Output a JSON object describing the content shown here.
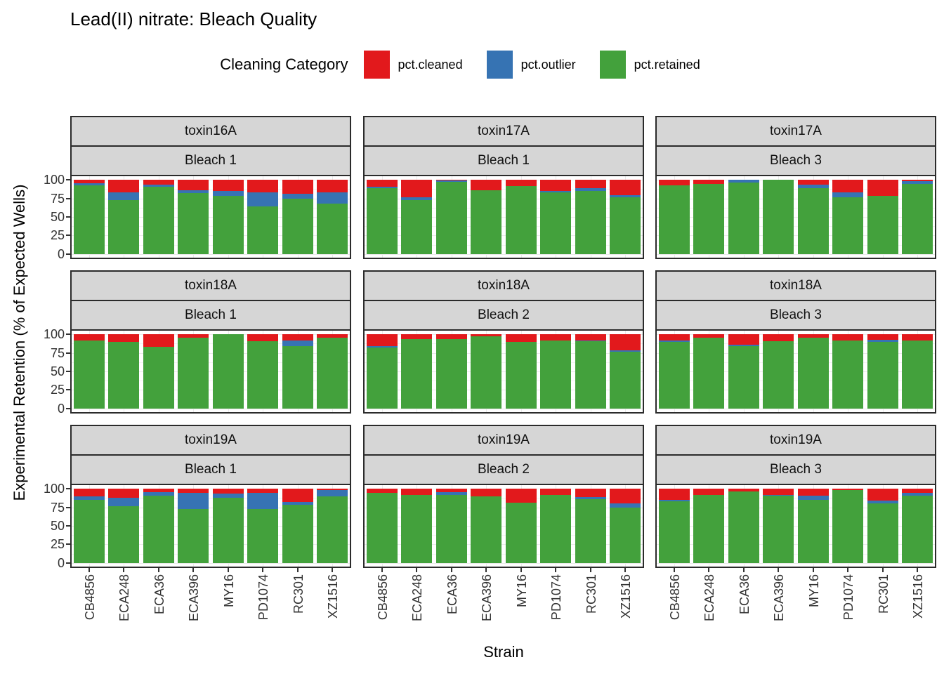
{
  "title": "Lead(II) nitrate: Bleach Quality",
  "legend": {
    "title": "Cleaning Category",
    "items": [
      {
        "label": "pct.cleaned",
        "color": "#e2191c"
      },
      {
        "label": "pct.outlier",
        "color": "#3673b3"
      },
      {
        "label": "pct.retained",
        "color": "#43a13c"
      }
    ]
  },
  "axes": {
    "y_title": "Experimental Retention (% of Expected Wells)",
    "x_title": "Strain",
    "y_ticks": [
      100,
      75,
      50,
      25,
      0
    ]
  },
  "chart_data": {
    "type": "bar",
    "stacked": true,
    "stack_order_bottom_to_top": [
      "pct.retained",
      "pct.outlier",
      "pct.cleaned"
    ],
    "colors": {
      "pct.cleaned": "#e2191c",
      "pct.outlier": "#3673b3",
      "pct.retained": "#43a13c"
    },
    "categories": [
      "CB4856",
      "ECA248",
      "ECA36",
      "ECA396",
      "MY16",
      "PD1074",
      "RC301",
      "XZ1516"
    ],
    "ylim": [
      0,
      100
    ],
    "grid": true,
    "facet_layout": {
      "rows": 3,
      "cols": 3,
      "strip_lines": [
        "toxin",
        "bleach"
      ]
    },
    "panels": [
      {
        "row": 1,
        "col": 1,
        "toxin": "toxin16A",
        "bleach": "Bleach 1",
        "retained": [
          92.5,
          73,
          90.5,
          82.5,
          78,
          64,
          75,
          68
        ],
        "outlier": [
          3,
          10.5,
          3,
          3.5,
          7.5,
          19,
          6,
          15.5
        ],
        "cleaned": [
          4.5,
          16.5,
          6.5,
          14,
          14.5,
          17,
          19,
          16.5
        ]
      },
      {
        "row": 1,
        "col": 2,
        "toxin": "toxin17A",
        "bleach": "Bleach 1",
        "retained": [
          88.5,
          72.5,
          97,
          86,
          92,
          83,
          85.5,
          77
        ],
        "outlier": [
          2.5,
          4,
          2,
          0,
          0,
          2.5,
          3,
          2.5
        ],
        "cleaned": [
          9,
          23.5,
          1,
          14,
          8,
          14.5,
          11.5,
          20.5
        ]
      },
      {
        "row": 1,
        "col": 3,
        "toxin": "toxin17A",
        "bleach": "Bleach 3",
        "retained": [
          93,
          95,
          96.5,
          100,
          89,
          77,
          78,
          95
        ],
        "outlier": [
          0,
          0,
          3.5,
          0,
          5,
          6,
          0,
          3.5
        ],
        "cleaned": [
          7,
          5,
          0,
          0,
          6,
          17,
          22,
          1.5
        ]
      },
      {
        "row": 2,
        "col": 1,
        "toxin": "toxin18A",
        "bleach": "Bleach 1",
        "retained": [
          92,
          89.5,
          83.5,
          96,
          100,
          90.5,
          84,
          96
        ],
        "outlier": [
          0,
          0,
          0,
          0,
          0,
          0,
          8,
          0
        ],
        "cleaned": [
          8,
          10.5,
          16.5,
          4,
          0,
          9.5,
          8,
          4
        ]
      },
      {
        "row": 2,
        "col": 2,
        "toxin": "toxin18A",
        "bleach": "Bleach 2",
        "retained": [
          82,
          94,
          94,
          97.5,
          89.5,
          91.5,
          90.5,
          76.5
        ],
        "outlier": [
          2.5,
          0,
          0,
          0,
          0,
          0,
          1,
          2
        ],
        "cleaned": [
          15.5,
          6,
          6,
          2.5,
          10.5,
          8.5,
          8.5,
          21.5
        ]
      },
      {
        "row": 2,
        "col": 3,
        "toxin": "toxin18A",
        "bleach": "Bleach 3",
        "retained": [
          89.5,
          96,
          84,
          91,
          95.5,
          92,
          90,
          92
        ],
        "outlier": [
          2,
          0,
          2.5,
          0,
          0,
          0,
          2.5,
          0
        ],
        "cleaned": [
          8.5,
          4,
          13.5,
          9,
          4.5,
          8,
          7.5,
          8
        ]
      },
      {
        "row": 3,
        "col": 1,
        "toxin": "toxin19A",
        "bleach": "Bleach 1",
        "retained": [
          85,
          77,
          90.5,
          73,
          87.5,
          73,
          78.5,
          89.5
        ],
        "outlier": [
          5,
          10.5,
          5,
          21.5,
          6.5,
          22,
          4,
          8.5
        ],
        "cleaned": [
          10,
          12.5,
          4.5,
          5.5,
          6,
          5,
          17.5,
          2
        ]
      },
      {
        "row": 3,
        "col": 2,
        "toxin": "toxin19A",
        "bleach": "Bleach 2",
        "retained": [
          95,
          92,
          91.5,
          90,
          81,
          92,
          86,
          75
        ],
        "outlier": [
          0,
          0,
          4,
          0,
          0,
          0,
          2.5,
          5.5
        ],
        "cleaned": [
          5,
          8,
          4.5,
          10,
          19,
          8,
          11.5,
          19.5
        ]
      },
      {
        "row": 3,
        "col": 3,
        "toxin": "toxin19A",
        "bleach": "Bleach 3",
        "retained": [
          83,
          92,
          96.5,
          90.5,
          85,
          98.5,
          80,
          91
        ],
        "outlier": [
          2,
          0,
          0,
          1.5,
          6,
          0,
          4,
          4
        ],
        "cleaned": [
          15,
          8,
          3.5,
          8,
          9,
          1.5,
          16,
          5
        ]
      }
    ]
  }
}
